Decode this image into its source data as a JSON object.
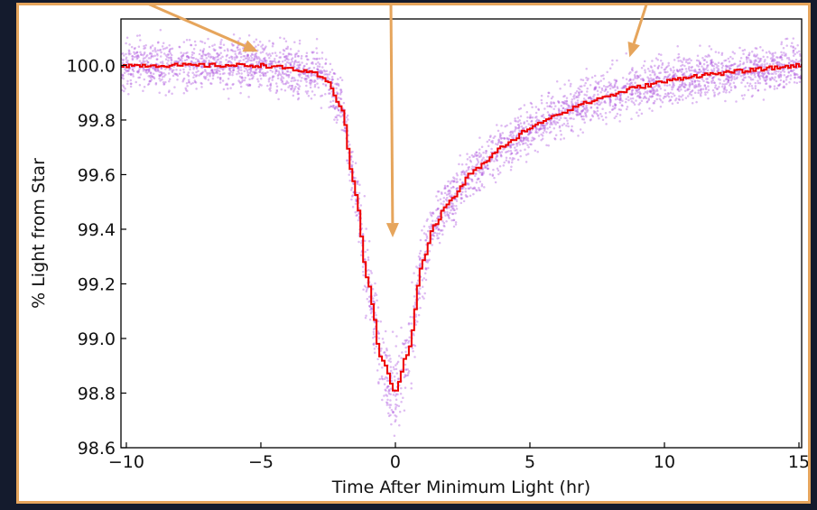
{
  "chart_data": {
    "type": "scatter",
    "title": "",
    "xlabel": "Time After Minimum Light (hr)",
    "ylabel": "% Light from Star",
    "xlim": [
      -10.2,
      15.1
    ],
    "ylim": [
      98.6,
      100.17
    ],
    "x_ticks": [
      -10,
      -5,
      0,
      5,
      10,
      15
    ],
    "x_tick_labels": [
      "−10",
      "−5",
      "0",
      "5",
      "10",
      "15"
    ],
    "y_ticks": [
      98.6,
      98.8,
      99.0,
      99.2,
      99.4,
      99.6,
      99.8,
      100.0
    ],
    "y_tick_labels": [
      "98.6",
      "98.8",
      "99.0",
      "99.2",
      "99.4",
      "99.6",
      "99.8",
      "100.0"
    ],
    "grid": false,
    "legend": "none",
    "series": [
      {
        "kind": "scatter",
        "color": "#b05ce0",
        "description_points": "dense individual measurements with scatter of about ±0.08% around the binned curve",
        "x": [
          -10,
          -9,
          -8,
          -7,
          -6,
          -5,
          -4,
          -3,
          -2.5,
          -2,
          -1.5,
          -1,
          -0.5,
          0,
          0.5,
          1,
          1.5,
          2,
          3,
          4,
          5,
          6,
          7,
          8,
          9,
          10,
          11,
          12,
          13,
          14,
          15
        ],
        "y": [
          100.0,
          100.0,
          100.0,
          100.0,
          100.0,
          100.0,
          99.99,
          99.97,
          99.94,
          99.85,
          99.55,
          99.2,
          98.92,
          98.81,
          98.95,
          99.28,
          99.42,
          99.5,
          99.62,
          99.7,
          99.77,
          99.82,
          99.86,
          99.89,
          99.92,
          99.94,
          99.96,
          99.97,
          99.98,
          99.99,
          100.0
        ]
      },
      {
        "kind": "line",
        "color": "#ee0000",
        "x": [
          -10,
          -9,
          -8,
          -7,
          -6,
          -5,
          -4,
          -3,
          -2.5,
          -2,
          -1.5,
          -1,
          -0.5,
          0,
          0.5,
          1,
          1.5,
          2,
          3,
          4,
          5,
          6,
          7,
          8,
          9,
          10,
          11,
          12,
          13,
          14,
          15
        ],
        "y": [
          100.0,
          100.0,
          100.0,
          100.0,
          100.0,
          100.0,
          99.99,
          99.97,
          99.94,
          99.85,
          99.55,
          99.2,
          98.92,
          98.81,
          98.95,
          99.28,
          99.42,
          99.5,
          99.62,
          99.7,
          99.77,
          99.82,
          99.86,
          99.89,
          99.92,
          99.94,
          99.96,
          99.97,
          99.98,
          99.99,
          100.0
        ]
      }
    ],
    "annotations": [
      {
        "type": "arrow",
        "color": "#e6a55c",
        "target_x": -5.1,
        "target_y": 100.05
      },
      {
        "type": "arrow",
        "color": "#e6a55c",
        "target_x": -0.1,
        "target_y": 99.37
      },
      {
        "type": "arrow",
        "color": "#e6a55c",
        "target_x": 8.7,
        "target_y": 100.03
      }
    ]
  }
}
